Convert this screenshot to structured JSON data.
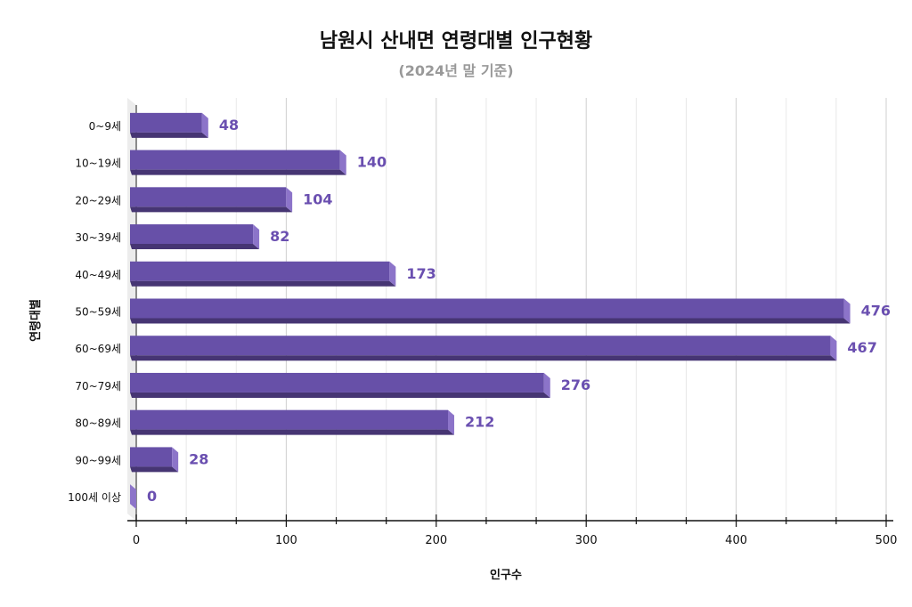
{
  "chart_data": {
    "type": "bar",
    "orientation": "horizontal",
    "title": "남원시 산내면 연령대별 인구현황",
    "subtitle": "(2024년 말 기준)",
    "xlabel": "인구수",
    "ylabel": "연령대별",
    "categories": [
      "0~9세",
      "10~19세",
      "20~29세",
      "30~39세",
      "40~49세",
      "50~59세",
      "60~69세",
      "70~79세",
      "80~89세",
      "90~99세",
      "100세 이상"
    ],
    "values": [
      48,
      140,
      104,
      82,
      173,
      476,
      467,
      276,
      212,
      28,
      0
    ],
    "xlim": [
      0,
      500
    ],
    "xticks": [
      0,
      100,
      200,
      300,
      400,
      500
    ],
    "grid": true,
    "colors": {
      "front": "#6750a8",
      "side": "#8c74c9",
      "bottom": "#463573",
      "label": "#6a4fb0"
    }
  }
}
